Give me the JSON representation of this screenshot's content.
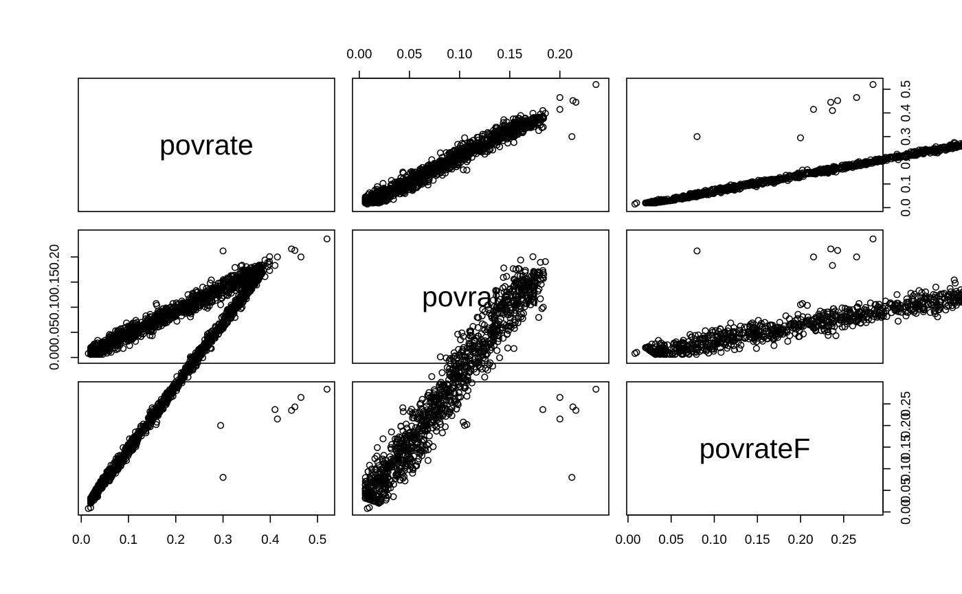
{
  "chart_data": {
    "type": "scatter",
    "variables": [
      "povrate",
      "povrateM",
      "povrateF"
    ],
    "axes": {
      "povrate": {
        "ticks": [
          0.0,
          0.1,
          0.2,
          0.3,
          0.4,
          0.5
        ],
        "tick_labels": [
          "0.0",
          "0.1",
          "0.2",
          "0.3",
          "0.4",
          "0.5"
        ],
        "range": [
          0.004,
          0.526
        ]
      },
      "povrateM": {
        "ticks": [
          0.0,
          0.05,
          0.1,
          0.15,
          0.2
        ],
        "tick_labels": [
          "0.00",
          "0.05",
          "0.10",
          "0.15",
          "0.20"
        ],
        "range": [
          -0.002,
          0.244
        ]
      },
      "povrateF": {
        "ticks": [
          0.0,
          0.05,
          0.1,
          0.15,
          0.2,
          0.25
        ],
        "tick_labels": [
          "0.00",
          "0.05",
          "0.10",
          "0.15",
          "0.20",
          "0.25"
        ],
        "range": [
          0.004,
          0.29
        ]
      }
    },
    "axis_placement": {
      "povrate": [
        "bottom",
        "right"
      ],
      "povrateM": [
        "top",
        "left"
      ],
      "povrateF": [
        "bottom",
        "right"
      ]
    },
    "marker": "open-circle",
    "notable_points": [
      {
        "povrate": 0.52,
        "povrateM": 0.236,
        "povrateF": 0.284
      },
      {
        "povrate": 0.465,
        "povrateM": 0.2,
        "povrateF": 0.265
      },
      {
        "povrate": 0.452,
        "povrateM": 0.213,
        "povrateF": 0.243
      },
      {
        "povrate": 0.445,
        "povrateM": 0.216,
        "povrateF": 0.235
      },
      {
        "povrate": 0.41,
        "povrateM": 0.183,
        "povrateF": 0.237
      },
      {
        "povrate": 0.415,
        "povrateM": 0.2,
        "povrateF": 0.215
      },
      {
        "povrate": 0.3,
        "povrateM": 0.212,
        "povrateF": 0.08
      },
      {
        "povrate": 0.295,
        "povrateM": 0.105,
        "povrateF": 0.2
      },
      {
        "povrate": 0.015,
        "povrateM": 0.008,
        "povrateF": 0.008
      },
      {
        "povrate": 0.02,
        "povrateM": 0.01,
        "povrateF": 0.01
      }
    ],
    "trend": {
      "povrateM_vs_povrate": {
        "slope": 0.46,
        "intercept": 0.0,
        "spread": 0.009
      },
      "povrateF_vs_povrate": {
        "slope": 0.54,
        "intercept": 0.0,
        "spread": 0.009
      },
      "povrateF_vs_povrateM": {
        "slope": 1.15,
        "intercept": 0.0,
        "spread": 0.017
      }
    },
    "grid": false,
    "legend": "none",
    "title": "",
    "xlabel": "",
    "ylabel": ""
  }
}
